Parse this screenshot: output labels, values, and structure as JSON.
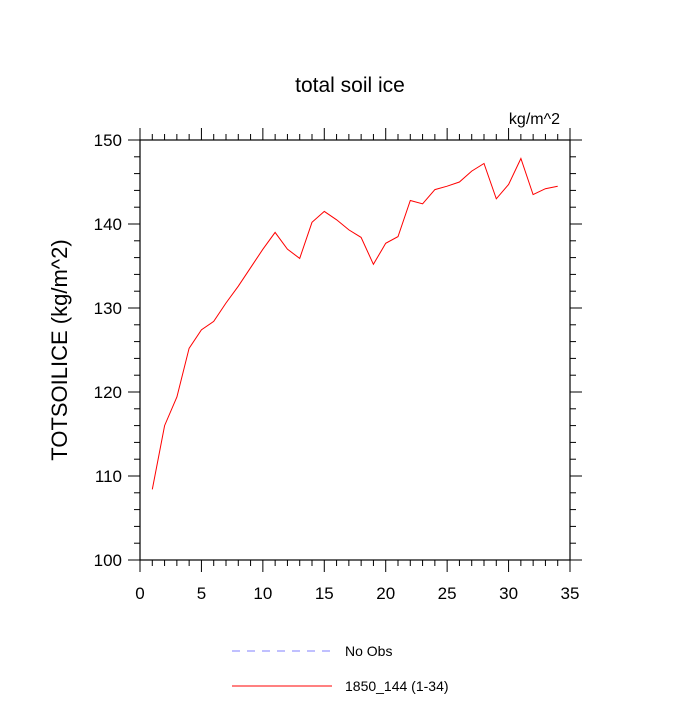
{
  "chart_data": {
    "type": "line",
    "title": "total soil ice",
    "units_label": "kg/m^2",
    "xlabel": "",
    "ylabel": "TOTSOILICE  (kg/m^2)",
    "xlim": [
      0,
      35
    ],
    "ylim": [
      100,
      150
    ],
    "x_ticks": [
      0,
      5,
      10,
      15,
      20,
      25,
      30,
      35
    ],
    "y_ticks": [
      100,
      110,
      120,
      130,
      140,
      150
    ],
    "grid": false,
    "legend_position": "bottom-center",
    "series": [
      {
        "name": "No Obs",
        "color": "#8080ff",
        "dash": "dashed",
        "x": [],
        "y": []
      },
      {
        "name": "1850_144 (1-34)",
        "color": "#ff0000",
        "dash": "solid",
        "x": [
          1,
          2,
          3,
          4,
          5,
          6,
          7,
          8,
          9,
          10,
          11,
          12,
          13,
          14,
          15,
          16,
          17,
          18,
          19,
          20,
          21,
          22,
          23,
          24,
          25,
          26,
          27,
          28,
          29,
          30,
          31,
          32,
          33,
          34
        ],
        "y": [
          108.4,
          116.0,
          119.4,
          125.2,
          127.4,
          128.4,
          130.6,
          132.6,
          134.8,
          137.0,
          139.0,
          137.0,
          135.9,
          140.2,
          141.5,
          140.5,
          139.3,
          138.4,
          135.2,
          137.7,
          138.5,
          142.8,
          142.4,
          144.1,
          144.5,
          145.0,
          146.3,
          147.2,
          143.0,
          144.7,
          147.8,
          143.5,
          144.2,
          144.5
        ]
      }
    ]
  }
}
